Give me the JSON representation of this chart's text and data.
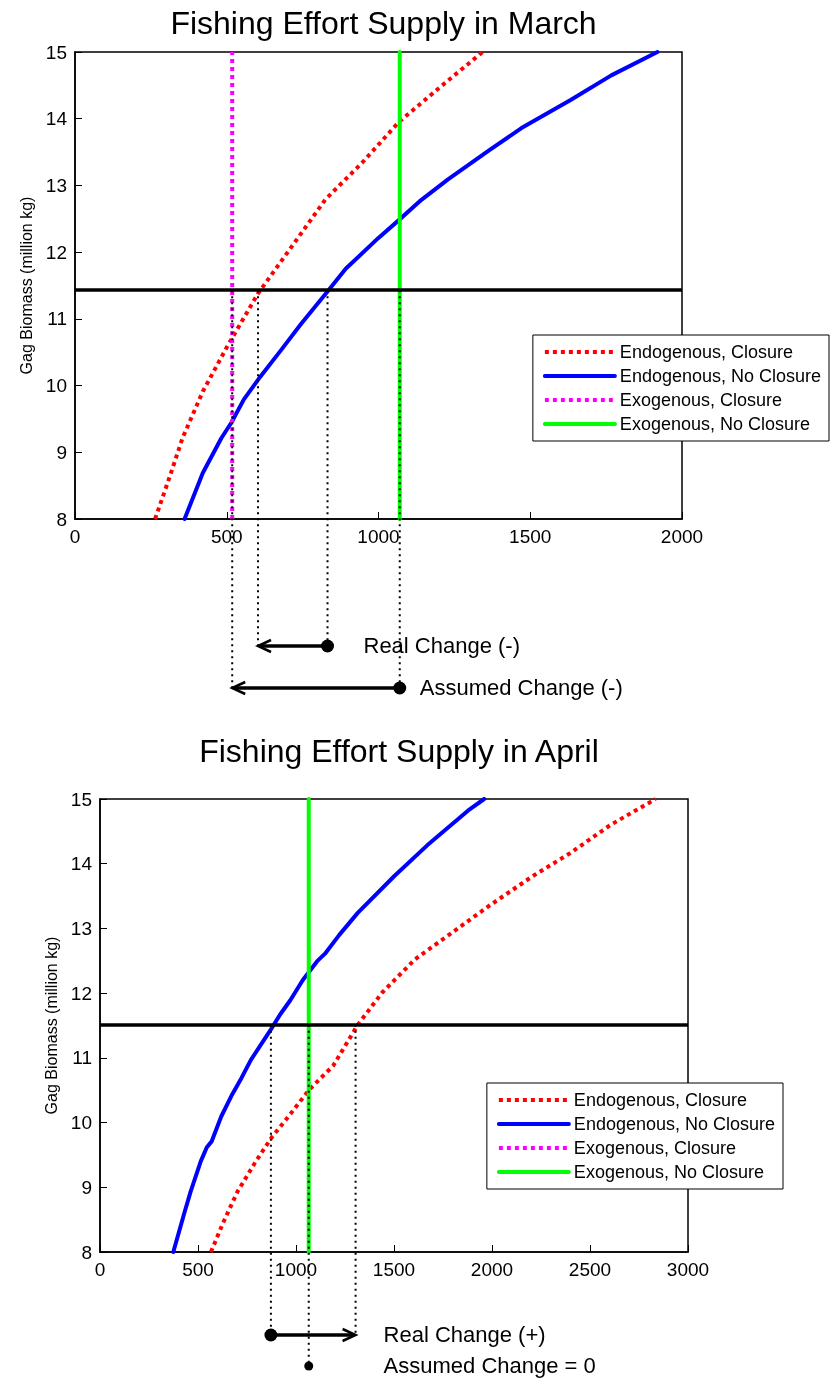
{
  "chart_data": [
    {
      "type": "line",
      "title": "Fishing Effort Supply in March",
      "ylabel": "Gag Biomass (million kg)",
      "xlim": [
        0,
        2000
      ],
      "xticks": [
        0,
        500,
        1000,
        1500,
        2000
      ],
      "ylim": [
        8,
        15
      ],
      "yticks": [
        8,
        9,
        10,
        11,
        12,
        13,
        14,
        15
      ],
      "grid": false,
      "legend": "right",
      "marker": "none",
      "series": [
        {
          "name": "Endogenous, Closure",
          "color": "#ff0000",
          "line_style": "dotted",
          "x": [
            264,
            314,
            354,
            421,
            502,
            603,
            704,
            825,
            946,
            1067,
            1202,
            1343
          ],
          "values": [
            8,
            8.66,
            9.21,
            9.91,
            10.59,
            11.38,
            12.02,
            12.79,
            13.34,
            13.95,
            14.47,
            15
          ]
        },
        {
          "name": "Endogenous, No Closure",
          "color": "#0000ff",
          "line_style": "solid",
          "x": [
            361,
            421,
            482,
            516,
            556,
            610,
            677,
            744,
            832,
            892,
            999,
            1067,
            1135,
            1229,
            1363,
            1471,
            1633,
            1767,
            1919
          ],
          "values": [
            8,
            8.69,
            9.21,
            9.45,
            9.79,
            10.13,
            10.52,
            10.92,
            11.41,
            11.75,
            12.21,
            12.48,
            12.76,
            13.09,
            13.52,
            13.86,
            14.28,
            14.65,
            15
          ]
        },
        {
          "name": "Exogenous, Closure",
          "color": "#ff00ff",
          "line_style": "dotted",
          "x": [
            518,
            518
          ],
          "values": [
            8,
            15
          ]
        },
        {
          "name": "Exogenous, No Closure",
          "color": "#00ff00",
          "line_style": "solid",
          "x": [
            1070,
            1070
          ],
          "values": [
            8,
            15
          ]
        }
      ],
      "ref_lines": [
        {
          "axis": "y",
          "value": 11.43,
          "color": "#000000",
          "line_style": "solid"
        },
        {
          "axis": "x",
          "value": 518,
          "color": "#000000",
          "line_style": "dotted"
        },
        {
          "axis": "x",
          "value": 603,
          "color": "#000000",
          "line_style": "dotted"
        },
        {
          "axis": "x",
          "value": 832,
          "color": "#000000",
          "line_style": "dotted"
        },
        {
          "axis": "x",
          "value": 1070,
          "color": "#000000",
          "line_style": "dotted"
        }
      ],
      "annotations": [
        "Real Change (-)",
        "Assumed Change (-)"
      ]
    },
    {
      "type": "line",
      "title": "Fishing Effort Supply in April",
      "ylabel": "Gag Biomass (million kg)",
      "xlim": [
        0,
        3000
      ],
      "xticks": [
        0,
        500,
        1000,
        1500,
        2000,
        2500,
        3000
      ],
      "ylim": [
        8,
        15
      ],
      "yticks": [
        8,
        9,
        10,
        11,
        12,
        13,
        14,
        15
      ],
      "grid": false,
      "legend": "bottom right",
      "marker": "none",
      "series": [
        {
          "name": "Endogenous, Closure",
          "color": "#ff0000",
          "line_style": "dotted",
          "x": [
            566,
            628,
            701,
            795,
            878,
            961,
            1065,
            1190,
            1315,
            1440,
            1606,
            1835,
            1981,
            2209,
            2397,
            2605,
            2834
          ],
          "values": [
            8,
            8.45,
            8.93,
            9.4,
            9.78,
            10.09,
            10.5,
            10.88,
            11.51,
            12.01,
            12.52,
            13.02,
            13.34,
            13.81,
            14.16,
            14.6,
            15
          ]
        },
        {
          "name": "Endogenous, No Closure",
          "color": "#0000ff",
          "line_style": "solid",
          "x": [
            374,
            431,
            462,
            514,
            545,
            570,
            618,
            670,
            722,
            770,
            868,
            919,
            971,
            1034,
            1107,
            1148,
            1221,
            1315,
            1502,
            1668,
            1877,
            1960
          ],
          "values": [
            8,
            8.61,
            8.93,
            9.4,
            9.62,
            9.71,
            10.09,
            10.41,
            10.69,
            10.97,
            11.42,
            11.67,
            11.89,
            12.2,
            12.49,
            12.61,
            12.9,
            13.24,
            13.81,
            14.28,
            14.82,
            15
          ]
        },
        {
          "name": "Exogenous, Closure",
          "color": "#ff00ff",
          "line_style": "dotted"
        },
        {
          "name": "Exogenous, No Closure",
          "color": "#00ff00",
          "line_style": "solid",
          "x": [
            1065,
            1065
          ],
          "values": [
            8,
            15
          ]
        }
      ],
      "ref_lines": [
        {
          "axis": "y",
          "value": 11.51,
          "color": "#000000",
          "line_style": "solid"
        },
        {
          "axis": "x",
          "value": 872,
          "color": "#000000",
          "line_style": "dotted"
        },
        {
          "axis": "x",
          "value": 1065,
          "color": "#000000",
          "line_style": "dotted"
        },
        {
          "axis": "x",
          "value": 1304,
          "color": "#000000",
          "line_style": "dotted"
        }
      ],
      "annotations": [
        "Real Change (+)",
        "Assumed Change = 0"
      ]
    }
  ]
}
